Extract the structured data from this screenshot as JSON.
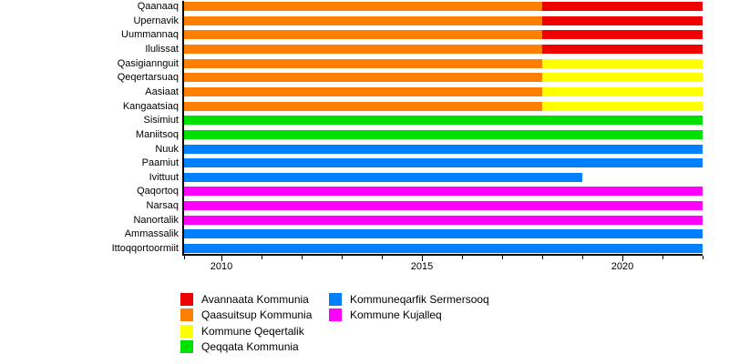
{
  "chart_data": {
    "type": "bar",
    "subtype": "horizontal-timeline",
    "title": "",
    "xlabel": "",
    "ylabel": "",
    "x_axis": {
      "min": 2009,
      "max": 2022,
      "major_ticks": [
        {
          "value": 2010,
          "label": "2010"
        },
        {
          "value": 2015,
          "label": "2015"
        },
        {
          "value": 2020,
          "label": "2020"
        }
      ],
      "minor_tick_interval": 1
    },
    "rows": [
      {
        "label": "Qaanaaq",
        "segments": [
          {
            "start": 2009,
            "end": 2018,
            "municipality": "Qaasuitsup Kommunia"
          },
          {
            "start": 2018,
            "end": 2022,
            "municipality": "Avannaata Kommunia"
          }
        ]
      },
      {
        "label": "Upernavik",
        "segments": [
          {
            "start": 2009,
            "end": 2018,
            "municipality": "Qaasuitsup Kommunia"
          },
          {
            "start": 2018,
            "end": 2022,
            "municipality": "Avannaata Kommunia"
          }
        ]
      },
      {
        "label": "Uummannaq",
        "segments": [
          {
            "start": 2009,
            "end": 2018,
            "municipality": "Qaasuitsup Kommunia"
          },
          {
            "start": 2018,
            "end": 2022,
            "municipality": "Avannaata Kommunia"
          }
        ]
      },
      {
        "label": "Ilulissat",
        "segments": [
          {
            "start": 2009,
            "end": 2018,
            "municipality": "Qaasuitsup Kommunia"
          },
          {
            "start": 2018,
            "end": 2022,
            "municipality": "Avannaata Kommunia"
          }
        ]
      },
      {
        "label": "Qasigiannguit",
        "segments": [
          {
            "start": 2009,
            "end": 2018,
            "municipality": "Qaasuitsup Kommunia"
          },
          {
            "start": 2018,
            "end": 2022,
            "municipality": "Kommune Qeqertalik"
          }
        ]
      },
      {
        "label": "Qeqertarsuaq",
        "segments": [
          {
            "start": 2009,
            "end": 2018,
            "municipality": "Qaasuitsup Kommunia"
          },
          {
            "start": 2018,
            "end": 2022,
            "municipality": "Kommune Qeqertalik"
          }
        ]
      },
      {
        "label": "Aasiaat",
        "segments": [
          {
            "start": 2009,
            "end": 2018,
            "municipality": "Qaasuitsup Kommunia"
          },
          {
            "start": 2018,
            "end": 2022,
            "municipality": "Kommune Qeqertalik"
          }
        ]
      },
      {
        "label": "Kangaatsiaq",
        "segments": [
          {
            "start": 2009,
            "end": 2018,
            "municipality": "Qaasuitsup Kommunia"
          },
          {
            "start": 2018,
            "end": 2022,
            "municipality": "Kommune Qeqertalik"
          }
        ]
      },
      {
        "label": "Sisimiut",
        "segments": [
          {
            "start": 2009,
            "end": 2022,
            "municipality": "Qeqqata Kommunia"
          }
        ]
      },
      {
        "label": "Maniitsoq",
        "segments": [
          {
            "start": 2009,
            "end": 2022,
            "municipality": "Qeqqata Kommunia"
          }
        ]
      },
      {
        "label": "Nuuk",
        "segments": [
          {
            "start": 2009,
            "end": 2022,
            "municipality": "Kommuneqarfik Sermersooq"
          }
        ]
      },
      {
        "label": "Paamiut",
        "segments": [
          {
            "start": 2009,
            "end": 2022,
            "municipality": "Kommuneqarfik Sermersooq"
          }
        ]
      },
      {
        "label": "Ivittuut",
        "segments": [
          {
            "start": 2009,
            "end": 2019,
            "municipality": "Kommuneqarfik Sermersooq"
          }
        ]
      },
      {
        "label": "Qaqortoq",
        "segments": [
          {
            "start": 2009,
            "end": 2022,
            "municipality": "Kommune Kujalleq"
          }
        ]
      },
      {
        "label": "Narsaq",
        "segments": [
          {
            "start": 2009,
            "end": 2022,
            "municipality": "Kommune Kujalleq"
          }
        ]
      },
      {
        "label": "Nanortalik",
        "segments": [
          {
            "start": 2009,
            "end": 2022,
            "municipality": "Kommune Kujalleq"
          }
        ]
      },
      {
        "label": "Ammassalik",
        "segments": [
          {
            "start": 2009,
            "end": 2022,
            "municipality": "Kommuneqarfik Sermersooq"
          }
        ]
      },
      {
        "label": "Ittoqqortoormiit",
        "segments": [
          {
            "start": 2009,
            "end": 2022,
            "municipality": "Kommuneqarfik Sermersooq"
          }
        ]
      }
    ],
    "legend": [
      {
        "label": "Avannaata Kommunia",
        "color": "#ee0000",
        "column": 1
      },
      {
        "label": "Qaasuitsup Kommunia",
        "color": "#ff8000",
        "column": 1
      },
      {
        "label": "Kommune Qeqertalik",
        "color": "#ffff00",
        "column": 1
      },
      {
        "label": "Qeqqata Kommunia",
        "color": "#00e000",
        "column": 1
      },
      {
        "label": "Kommuneqarfik Sermersooq",
        "color": "#0080ff",
        "column": 2
      },
      {
        "label": "Kommune Kujalleq",
        "color": "#ff00ff",
        "column": 2
      }
    ],
    "legend_position": "bottom",
    "grid": false,
    "axis_color": "#000000",
    "background_color": "#ffffff"
  }
}
